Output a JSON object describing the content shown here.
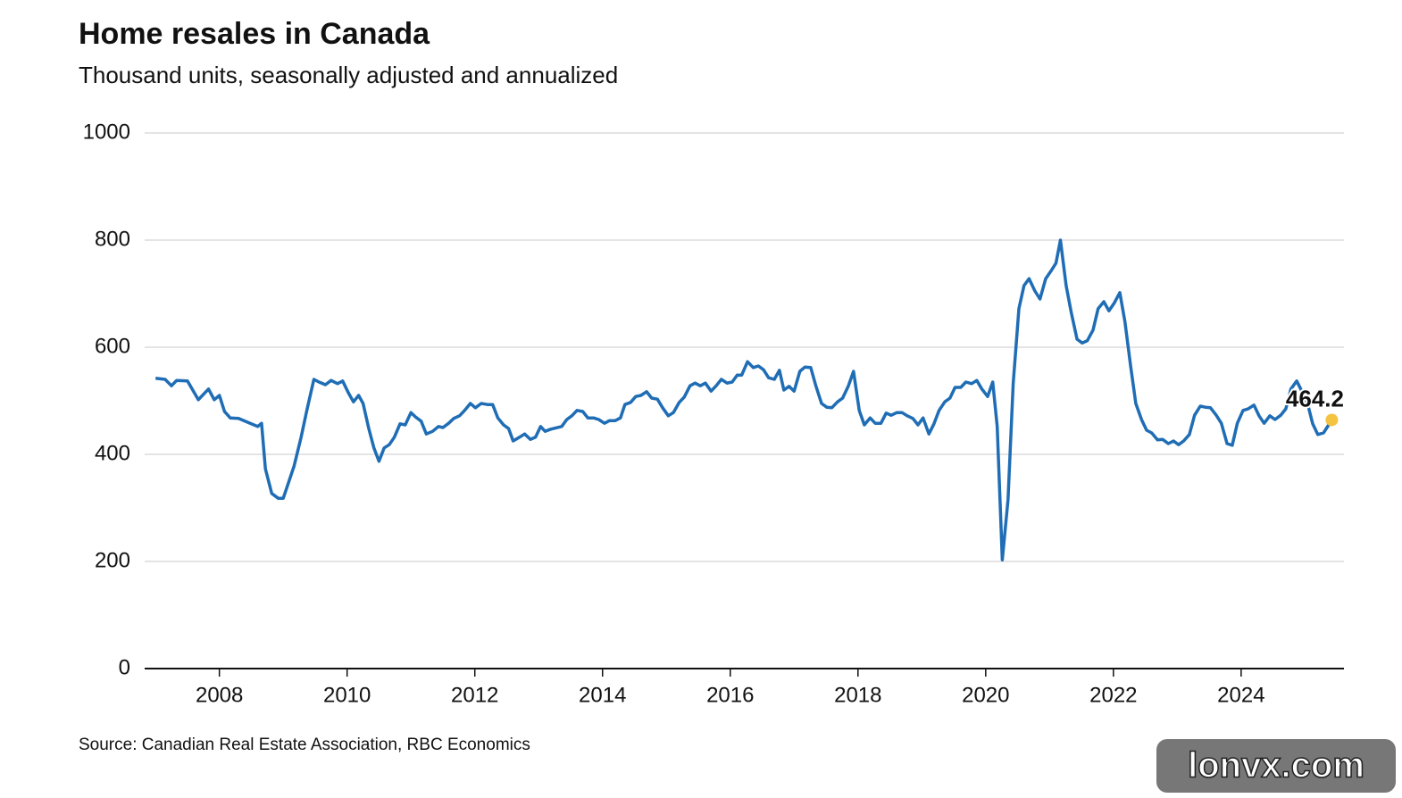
{
  "chart_data": {
    "type": "line",
    "title": "Home resales in Canada",
    "subtitle": "Thousand units, seasonally adjusted and annualized",
    "source": "Source: Canadian Real Estate Association, RBC Economics",
    "watermark": "lonvx.com",
    "color": "#1f6db5",
    "marker_color": "#f5c342",
    "grid": true,
    "xlim": [
      2006.83,
      2025.61
    ],
    "xticks": [
      2008,
      2010,
      2012,
      2014,
      2016,
      2018,
      2020,
      2022,
      2024
    ],
    "ylim": [
      0,
      1000
    ],
    "yticks": [
      0,
      200,
      400,
      600,
      800,
      1000
    ],
    "x": [
      2007.0,
      2007.15,
      2007.25,
      2007.33,
      2007.5,
      2007.67,
      2007.83,
      2007.92,
      2008.0,
      2008.08,
      2008.17,
      2008.3,
      2008.54,
      2008.6,
      2008.66,
      2008.72,
      2008.82,
      2008.92,
      2009.0,
      2009.17,
      2009.28,
      2009.37,
      2009.48,
      2009.56,
      2009.66,
      2009.75,
      2009.85,
      2009.93,
      2010.02,
      2010.1,
      2010.18,
      2010.25,
      2010.34,
      2010.42,
      2010.5,
      2010.58,
      2010.66,
      2010.74,
      2010.83,
      2010.91,
      2011.0,
      2011.07,
      2011.16,
      2011.24,
      2011.34,
      2011.43,
      2011.5,
      2011.59,
      2011.67,
      2011.76,
      2011.84,
      2011.93,
      2012.01,
      2012.1,
      2012.2,
      2012.28,
      2012.36,
      2012.45,
      2012.53,
      2012.6,
      2012.7,
      2012.78,
      2012.87,
      2012.95,
      2013.03,
      2013.1,
      2013.19,
      2013.36,
      2013.44,
      2013.52,
      2013.6,
      2013.69,
      2013.77,
      2013.86,
      2013.94,
      2014.03,
      2014.11,
      2014.2,
      2014.28,
      2014.35,
      2014.44,
      2014.52,
      2014.6,
      2014.69,
      2014.77,
      2014.86,
      2014.94,
      2015.03,
      2015.11,
      2015.2,
      2015.28,
      2015.37,
      2015.45,
      2015.53,
      2015.61,
      2015.7,
      2015.78,
      2015.86,
      2015.95,
      2016.03,
      2016.11,
      2016.18,
      2016.27,
      2016.36,
      2016.44,
      2016.52,
      2016.6,
      2016.69,
      2016.77,
      2016.84,
      2016.92,
      2017.0,
      2017.09,
      2017.17,
      2017.26,
      2017.34,
      2017.43,
      2017.51,
      2017.59,
      2017.68,
      2017.76,
      2017.85,
      2017.93,
      2018.02,
      2018.1,
      2018.19,
      2018.27,
      2018.36,
      2018.44,
      2018.52,
      2018.61,
      2018.69,
      2018.77,
      2018.86,
      2018.94,
      2019.02,
      2019.11,
      2019.19,
      2019.27,
      2019.36,
      2019.44,
      2019.52,
      2019.61,
      2019.69,
      2019.78,
      2019.86,
      2019.94,
      2020.03,
      2020.11,
      2020.18,
      2020.26,
      2020.35,
      2020.43,
      2020.52,
      2020.6,
      2020.68,
      2020.77,
      2020.85,
      2020.94,
      2021.02,
      2021.1,
      2021.17,
      2021.26,
      2021.34,
      2021.43,
      2021.51,
      2021.59,
      2021.68,
      2021.76,
      2021.85,
      2021.93,
      2022.01,
      2022.1,
      2022.18,
      2022.27,
      2022.35,
      2022.44,
      2022.52,
      2022.6,
      2022.69,
      2022.77,
      2022.86,
      2022.94,
      2023.02,
      2023.1,
      2023.19,
      2023.27,
      2023.36,
      2023.44,
      2023.52,
      2023.61,
      2023.69,
      2023.78,
      2023.86,
      2023.94,
      2024.03,
      2024.11,
      2024.2,
      2024.28,
      2024.36,
      2024.45,
      2024.53,
      2024.62,
      2024.7,
      2024.78,
      2024.87,
      2024.95,
      2025.04,
      2025.12,
      2025.2,
      2025.29,
      2025.42
    ],
    "values": [
      542,
      540,
      528,
      538,
      537,
      502,
      522,
      502,
      510,
      480,
      468,
      467,
      455,
      452,
      458,
      373,
      327,
      318,
      318,
      378,
      432,
      482,
      540,
      535,
      530,
      538,
      532,
      537,
      515,
      498,
      510,
      495,
      448,
      412,
      387,
      412,
      418,
      432,
      457,
      455,
      478,
      470,
      462,
      438,
      443,
      452,
      450,
      458,
      467,
      472,
      482,
      495,
      487,
      495,
      493,
      493,
      468,
      455,
      448,
      425,
      432,
      438,
      428,
      432,
      452,
      443,
      447,
      452,
      465,
      472,
      482,
      480,
      468,
      468,
      465,
      458,
      463,
      463,
      468,
      493,
      497,
      508,
      510,
      517,
      505,
      503,
      487,
      472,
      478,
      497,
      507,
      528,
      533,
      528,
      533,
      518,
      528,
      540,
      533,
      535,
      548,
      548,
      573,
      562,
      565,
      558,
      543,
      540,
      557,
      520,
      527,
      518,
      555,
      563,
      562,
      528,
      495,
      488,
      487,
      498,
      505,
      528,
      555,
      482,
      455,
      468,
      458,
      458,
      477,
      473,
      478,
      478,
      472,
      467,
      455,
      468,
      438,
      457,
      482,
      498,
      505,
      525,
      525,
      535,
      532,
      538,
      522,
      508,
      535,
      452,
      203,
      315,
      532,
      672,
      715,
      728,
      705,
      690,
      728,
      742,
      757,
      800,
      715,
      665,
      615,
      608,
      612,
      632,
      672,
      685,
      668,
      682,
      702,
      648,
      565,
      495,
      465,
      445,
      440,
      427,
      428,
      420,
      425,
      418,
      425,
      437,
      473,
      490,
      488,
      487,
      473,
      458,
      420,
      417,
      458,
      482,
      485,
      492,
      472,
      458,
      472,
      465,
      473,
      485,
      522,
      537,
      518,
      495,
      457,
      437,
      440,
      464.2
    ]
  }
}
